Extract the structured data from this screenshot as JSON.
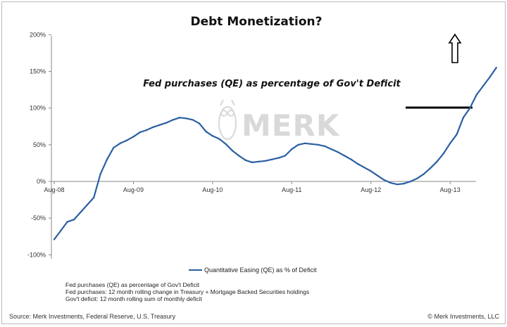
{
  "chart_data": {
    "type": "line",
    "title": "Debt Monetization?",
    "annotation": "Fed purchases (QE) as percentage of Gov't Deficit",
    "watermark": "MERK",
    "x_tick_labels": [
      "Aug-08",
      "Aug-09",
      "Aug-10",
      "Aug-11",
      "Aug-12",
      "Aug-13"
    ],
    "y_tick_labels": [
      "200%",
      "150%",
      "100%",
      "50%",
      "0%",
      "-50%",
      "-100%"
    ],
    "ylim": [
      -100,
      200
    ],
    "grid": false,
    "legend_position": "bottom",
    "reference_line_value": 100,
    "series": [
      {
        "name": "Quantitative Easing (QE) as % of Deficit",
        "color": "#2a5fa3",
        "x": [
          0,
          1,
          2,
          3,
          4,
          5,
          6,
          7,
          8,
          9,
          10,
          11,
          12,
          13,
          14,
          15,
          16,
          17,
          18,
          19,
          20,
          21,
          22,
          23,
          24,
          25,
          26,
          27,
          28,
          29,
          30,
          31,
          32,
          33,
          34,
          35,
          36,
          37,
          38,
          39,
          40,
          41,
          42,
          43,
          44,
          45,
          46,
          47,
          48,
          49,
          50,
          51,
          52,
          53,
          54,
          55,
          56,
          57,
          58,
          59,
          60,
          61,
          62,
          63
        ],
        "values": [
          -79,
          -67,
          -55,
          -52,
          -42,
          -32,
          -22,
          10,
          30,
          46,
          52,
          56,
          61,
          67,
          70,
          74,
          77,
          80,
          84,
          87,
          86,
          84,
          79,
          68,
          62,
          58,
          51,
          42,
          35,
          29,
          26,
          27,
          28,
          30,
          32,
          35,
          44,
          50,
          52,
          51,
          50,
          48,
          44,
          40,
          35,
          30,
          24,
          19,
          14,
          8,
          2,
          -2,
          -4,
          -3,
          0,
          4,
          10,
          18,
          27,
          38,
          52,
          64,
          87,
          100
        ]
      }
    ],
    "series_tail": {
      "x": [
        63,
        64,
        65,
        66,
        67
      ],
      "values": [
        100,
        118,
        130,
        142,
        155
      ]
    },
    "up_arrow": true,
    "notes": [
      "Fed purchases (QE) as percentage of Gov't Deficit",
      "Fed purchases: 12 month rolling change in Treasury + Mortgage Backed Securities holdings",
      "Gov't deficit: 12 month rolling sum of monthly deficit"
    ],
    "source": "Source: Merk Investments, Federal Reserve, U.S. Treasury",
    "copyright": "© Merk Investments, LLC"
  }
}
